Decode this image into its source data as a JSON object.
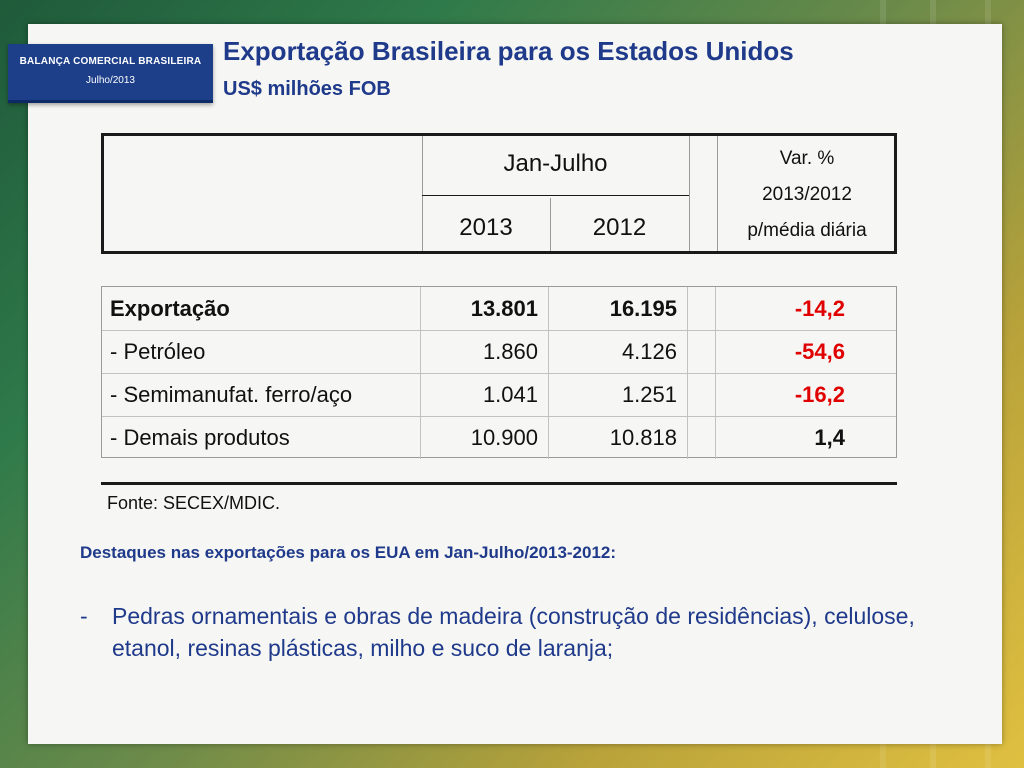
{
  "badge": {
    "line1": "BALANÇA COMERCIAL BRASILEIRA",
    "line2": "Julho/2013"
  },
  "header": {
    "title": "Exportação Brasileira para os Estados Unidos",
    "subtitle": "US$ milhões FOB"
  },
  "table": {
    "period_header": "Jan-Julho",
    "year_a": "2013",
    "year_b": "2012",
    "var_header": {
      "line1": "Var. %",
      "line2": "2013/2012",
      "line3": "p/média diária"
    },
    "rows": [
      {
        "label": "Exportação",
        "v2013": "13.801",
        "v2012": "16.195",
        "var": "-14,2"
      },
      {
        "label": "- Petróleo",
        "v2013": "1.860",
        "v2012": "4.126",
        "var": "-54,6"
      },
      {
        "label": "- Semimanufat. ferro/aço",
        "v2013": "1.041",
        "v2012": "1.251",
        "var": "-16,2"
      },
      {
        "label": "- Demais produtos",
        "v2013": "10.900",
        "v2012": "10.818",
        "var": "1,4"
      }
    ],
    "source": "Fonte: SECEX/MDIC."
  },
  "highlights": {
    "heading": "Destaques nas exportações para os EUA em Jan-Julho/2013-2012:",
    "bullet_marker": "-",
    "bullet": "Pedras ornamentais e obras de madeira (construção de residências), celulose, etanol, resinas plásticas, milho e suco de laranja;"
  },
  "colors": {
    "title_blue": "#1f3a8a",
    "badge_blue": "#1d3f8a",
    "negative_red": "#e00000"
  }
}
